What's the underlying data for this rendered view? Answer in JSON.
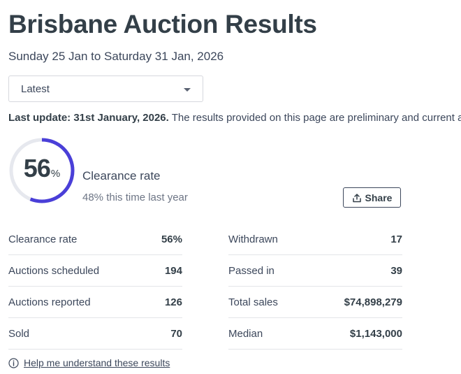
{
  "page": {
    "title": "Brisbane Auction Results",
    "date_range": "Sunday 25 Jan to Saturday 31 Jan, 2026"
  },
  "period_select": {
    "selected": "Latest"
  },
  "update": {
    "label": "Last update: 31st January, 2026.",
    "note": " The results provided on this page are preliminary and current at the time of publishing."
  },
  "summary": {
    "clearance_value": "56",
    "clearance_unit": "%",
    "clearance_fraction": 0.56,
    "clearance_label": "Clearance rate",
    "last_year": "48% this time last year",
    "share_label": "Share"
  },
  "stats_left": [
    {
      "label": "Clearance rate",
      "value": "56%"
    },
    {
      "label": "Auctions scheduled",
      "value": "194"
    },
    {
      "label": "Auctions reported",
      "value": "126"
    },
    {
      "label": "Sold",
      "value": "70"
    }
  ],
  "stats_right": [
    {
      "label": "Withdrawn",
      "value": "17"
    },
    {
      "label": "Passed in",
      "value": "39"
    },
    {
      "label": "Total sales",
      "value": "$74,898,279"
    },
    {
      "label": "Median",
      "value": "$1,143,000"
    }
  ],
  "help": {
    "label": "Help me understand these results"
  },
  "colors": {
    "accent": "#4a3fd8",
    "track": "#e6e8ee",
    "text": "#3c475b"
  }
}
